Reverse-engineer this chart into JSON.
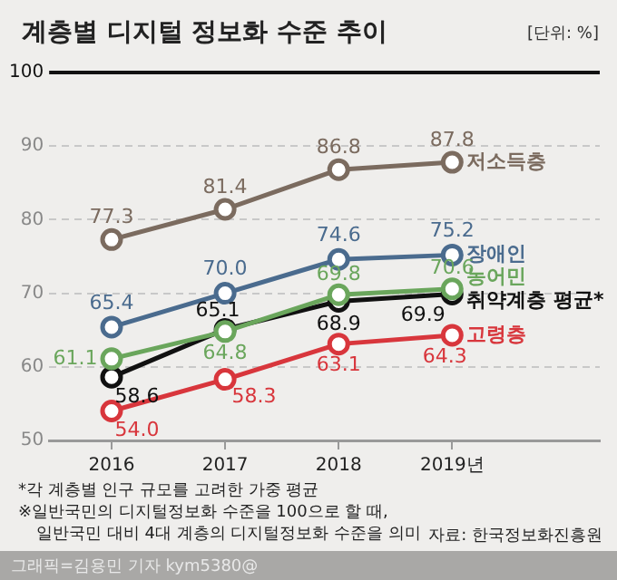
{
  "chart_data": {
    "type": "line",
    "title": "계층별 디지털 정보화 수준 추이",
    "subtitle": "[단위: %]",
    "categories": [
      "2016",
      "2017",
      "2018",
      "2019년"
    ],
    "series": [
      {
        "name": "저소득층",
        "color": "#7b6b5f",
        "values": [
          77.3,
          81.4,
          86.8,
          87.8
        ],
        "value_labels": [
          "77.3",
          "81.4",
          "86.8",
          "87.8"
        ]
      },
      {
        "name": "장애인",
        "color": "#4a6b8e",
        "values": [
          65.4,
          70.0,
          74.6,
          75.2
        ],
        "value_labels": [
          "65.4",
          "70.0",
          "74.6",
          "75.2"
        ]
      },
      {
        "name": "농어민",
        "color": "#6aa65c",
        "values": [
          61.1,
          64.8,
          69.8,
          70.6
        ],
        "value_labels": [
          "61.1",
          "64.8",
          "69.8",
          "70.6"
        ]
      },
      {
        "name": "취약계층 평균*",
        "color": "#111111",
        "values": [
          58.6,
          65.1,
          68.9,
          69.9
        ],
        "value_labels": [
          "58.6",
          "65.1",
          "68.9",
          "69.9"
        ]
      },
      {
        "name": "고령층",
        "color": "#d8363c",
        "values": [
          54.0,
          58.3,
          63.1,
          64.3
        ],
        "value_labels": [
          "54.0",
          "58.3",
          "63.1",
          "64.3"
        ]
      }
    ],
    "ylim": [
      50,
      100
    ],
    "yticks": [
      50,
      60,
      70,
      80,
      90,
      100
    ],
    "grid": "y",
    "legend": false,
    "marker": "circle",
    "line_style": "solid",
    "ref_lines": [
      {
        "axis": "y",
        "value": 100,
        "color": "#111111",
        "line_style": "solid"
      }
    ],
    "annotations": [
      "*각 계층별 인구 규모를 고려한 가중 평균",
      "※일반국민의 디지털정보화 수준을 100으로 할 때,\n일반국민 대비 4대 계층의 디지털정보화 수준을 의미",
      "자료: 한국정보화진흥원",
      "그래픽=김용민 기자 kym5380@"
    ]
  }
}
